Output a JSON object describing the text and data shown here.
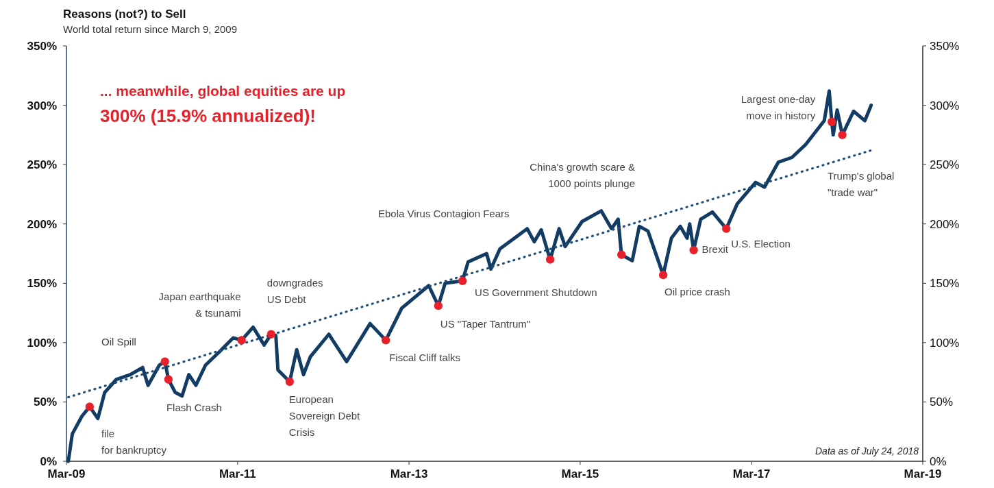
{
  "chart_data": {
    "type": "line",
    "title": "Reasons (not?) to Sell",
    "subtitle": "World total return since March 9, 2009",
    "xlim": [
      "2009-03",
      "2019-03"
    ],
    "xticks": [
      {
        "value": "2009-03",
        "label": "Mar-09"
      },
      {
        "value": "2011-03",
        "label": "Mar-11"
      },
      {
        "value": "2013-03",
        "label": "Mar-13"
      },
      {
        "value": "2015-03",
        "label": "Mar-15"
      },
      {
        "value": "2017-03",
        "label": "Mar-17"
      },
      {
        "value": "2019-03",
        "label": "Mar-19"
      }
    ],
    "ylim": [
      0,
      350
    ],
    "yticks": [
      {
        "value": 0,
        "label": "0%"
      },
      {
        "value": 50,
        "label": "50%"
      },
      {
        "value": 100,
        "label": "100%"
      },
      {
        "value": 150,
        "label": "150%"
      },
      {
        "value": 200,
        "label": "200%"
      },
      {
        "value": 250,
        "label": "250%"
      },
      {
        "value": 300,
        "label": "300%"
      },
      {
        "value": 350,
        "label": "350%"
      }
    ],
    "y2lim": [
      0,
      350
    ],
    "y2ticks": [
      {
        "value": 0,
        "label": "0%"
      },
      {
        "value": 50,
        "label": "50%"
      },
      {
        "value": 100,
        "label": "100%"
      },
      {
        "value": 150,
        "label": "150%"
      },
      {
        "value": 200,
        "label": "200%"
      },
      {
        "value": 250,
        "label": "250%"
      },
      {
        "value": 300,
        "label": "300%"
      },
      {
        "value": 350,
        "label": "350%"
      }
    ],
    "series": [
      {
        "type": "line",
        "color": "#133c64",
        "x": [
          "2009-03-09",
          "2009-03-26",
          "2009-05-06",
          "2009-06-08",
          "2009-07-13",
          "2009-08-11",
          "2009-09-30",
          "2009-11-28",
          "2010-01-20",
          "2010-02-12",
          "2010-04-01",
          "2010-04-25",
          "2010-05-10",
          "2010-06-08",
          "2010-07-07",
          "2010-08-05",
          "2010-09-04",
          "2010-10-15",
          "2010-12-12",
          "2011-02-10",
          "2011-03-18",
          "2011-05-06",
          "2011-06-22",
          "2011-07-22",
          "2011-08-11",
          "2011-08-20",
          "2011-10-09",
          "2011-11-08",
          "2011-12-07",
          "2012-01-05",
          "2012-03-24",
          "2012-06-08",
          "2012-09-16",
          "2012-11-22",
          "2013-01-29",
          "2013-05-24",
          "2013-07-04",
          "2013-08-02",
          "2013-10-15",
          "2013-11-08",
          "2014-01-26",
          "2014-02-13",
          "2014-03-24",
          "2014-07-18",
          "2014-08-17",
          "2014-09-16",
          "2014-10-24",
          "2014-12-01",
          "2014-12-27",
          "2015-03-09",
          "2015-05-30",
          "2015-07-13",
          "2015-08-10",
          "2015-08-24",
          "2015-10-09",
          "2015-11-08",
          "2015-12-15",
          "2016-02-18",
          "2016-03-24",
          "2016-05-01",
          "2016-05-30",
          "2016-06-10",
          "2016-06-27",
          "2016-07-27",
          "2016-09-15",
          "2016-11-13",
          "2016-12-30",
          "2017-03-18",
          "2017-04-25",
          "2017-06-23",
          "2017-08-20",
          "2017-10-18",
          "2018-01-05",
          "2018-01-26",
          "2018-02-06",
          "2018-02-12",
          "2018-03-01",
          "2018-03-23",
          "2018-05-10",
          "2018-06-27",
          "2018-07-24"
        ],
        "values": [
          0,
          23,
          38,
          46,
          36,
          58,
          69,
          73,
          79,
          64,
          81,
          84,
          69,
          58,
          55,
          73,
          64,
          81,
          92,
          104,
          102,
          113,
          98,
          107,
          106,
          77,
          67,
          94,
          73,
          88,
          107,
          84,
          116,
          102,
          129,
          148,
          131,
          150,
          152,
          168,
          175,
          162,
          179,
          196,
          185,
          195,
          170,
          196,
          181,
          202,
          211,
          196,
          204,
          174,
          169,
          198,
          194,
          157,
          188,
          198,
          188,
          200,
          178,
          204,
          210,
          196,
          217,
          235,
          231,
          252,
          256,
          267,
          287,
          312,
          286,
          275,
          296,
          275,
          295,
          287,
          300
        ]
      },
      {
        "type": "line",
        "color": "#1f4e79",
        "line_style": "dotted",
        "x": [
          "2009-03-09",
          "2018-07-24"
        ],
        "values": [
          54,
          262
        ]
      },
      {
        "type": "scatter",
        "color": "#e8202a",
        "marker": "circle",
        "x": [
          "2009-06-08",
          "2010-04-25",
          "2010-05-10",
          "2011-03-18",
          "2011-07-22",
          "2011-10-09",
          "2012-11-22",
          "2013-07-04",
          "2013-10-15",
          "2014-10-24",
          "2015-08-24",
          "2016-02-18",
          "2016-06-27",
          "2016-11-13",
          "2018-02-06",
          "2018-03-23"
        ],
        "values": [
          46,
          84,
          69,
          102,
          107,
          67,
          102,
          131,
          152,
          170,
          174,
          157,
          178,
          196,
          286,
          275
        ]
      }
    ],
    "annotations": [
      {
        "text": "file\nfor bankruptcy",
        "x": "2009-06-08",
        "y": 46
      },
      {
        "text": "Flash Crash",
        "x": "2010-05-10",
        "y": 69
      },
      {
        "text": "Japan earthquake\n& tsunami",
        "x": "2011-03-18",
        "y": 102
      },
      {
        "text": "downgrades\nUS Debt",
        "x": "2011-07-22",
        "y": 107
      },
      {
        "text": "European\nSovereign Debt\nCrisis",
        "x": "2011-10-09",
        "y": 67
      },
      {
        "text": "Fiscal Cliff talks",
        "x": "2012-11-22",
        "y": 102
      },
      {
        "text": "US \"Taper Tantrum\"",
        "x": "2013-07-04",
        "y": 131
      },
      {
        "text": "US Government Shutdown",
        "x": "2013-10-15",
        "y": 152
      },
      {
        "text": "Oil price crash",
        "x": "2016-02-18",
        "y": 157
      },
      {
        "text": "Brexit",
        "x": "2016-06-27",
        "y": 178
      },
      {
        "text": "U.S. Election",
        "x": "2016-11-13",
        "y": 196
      },
      {
        "text": "Largest one-day\nmove in history",
        "x": "2018-02-06",
        "y": 286
      },
      "Oil Spill",
      "Ebola Virus Contagion Fears",
      "China's growth scare &\n1000 points plunge",
      "Trump's global\n\"trade war\"",
      "... meanwhile, global equities are up\n300% (15.9% annualized)!",
      "Data as of July 24, 2018"
    ]
  }
}
